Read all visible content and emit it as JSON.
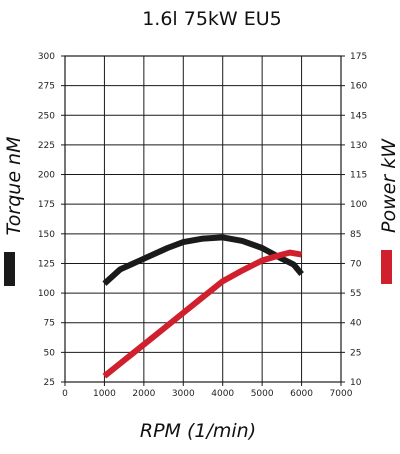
{
  "chart_data": {
    "type": "line",
    "title": "1.6l 75kW EU5",
    "xlabel": "RPM (1/min)",
    "ylabel_left": "Torque nM",
    "ylabel_right": "Power kW",
    "x_ticks": [
      0,
      1000,
      2000,
      3000,
      4000,
      5000,
      6000,
      7000
    ],
    "xlim": [
      0,
      7000
    ],
    "y_left_ticks": [
      25,
      50,
      75,
      100,
      125,
      150,
      175,
      200,
      225,
      250,
      275,
      300
    ],
    "y_left_lim": [
      25,
      300
    ],
    "y_right_ticks": [
      10,
      25,
      40,
      55,
      70,
      85,
      100,
      115,
      130,
      145,
      160,
      175
    ],
    "y_right_lim": [
      10,
      175
    ],
    "grid": true,
    "colors": {
      "torque": "#1a1a1a",
      "power": "#d0202e"
    },
    "series": [
      {
        "key": "torque",
        "axis": "left",
        "x": [
          1000,
          1400,
          2000,
          2600,
          3000,
          3500,
          4000,
          4500,
          5000,
          5500,
          5800,
          6000
        ],
        "y": [
          108,
          120,
          129,
          138,
          143,
          146,
          147,
          144,
          138,
          129,
          124,
          116
        ]
      },
      {
        "key": "power",
        "axis": "right",
        "x": [
          1000,
          1500,
          2000,
          2500,
          3000,
          3500,
          4000,
          4500,
          5000,
          5500,
          5700,
          6000
        ],
        "y": [
          13,
          21,
          29,
          37,
          45,
          53,
          61,
          66.5,
          71.5,
          74.5,
          75.5,
          74.5
        ]
      }
    ]
  }
}
